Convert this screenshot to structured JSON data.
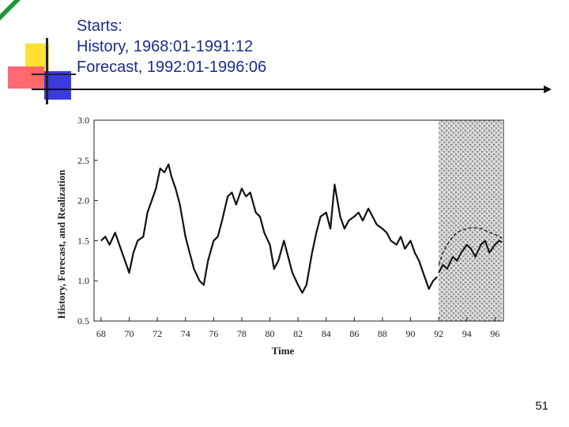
{
  "slide": {
    "title_lines": [
      "Starts:",
      "History, 1968:01-1991:12",
      "Forecast, 1992:01-1996:06"
    ],
    "page_number": "51",
    "colors": {
      "title": "#1a2e8a",
      "accent_yellow": "#ffe135",
      "accent_red": "#ff4b5a",
      "accent_blue": "#3a3adf",
      "accent_green": "#1f9a3a"
    }
  },
  "chart_data": {
    "type": "line",
    "title": "",
    "xlabel": "Time",
    "ylabel": "History, Forecast, and Realization",
    "xlim": [
      1967.5,
      1996.6
    ],
    "ylim": [
      0.5,
      3.0
    ],
    "x_ticks": [
      1968,
      1970,
      1972,
      1974,
      1976,
      1978,
      1980,
      1982,
      1984,
      1986,
      1988,
      1990,
      1992,
      1994,
      1996
    ],
    "x_tick_labels": [
      "68",
      "70",
      "72",
      "74",
      "76",
      "78",
      "80",
      "82",
      "84",
      "86",
      "88",
      "90",
      "92",
      "94",
      "96"
    ],
    "y_ticks": [
      0.5,
      1.0,
      1.5,
      2.0,
      2.5,
      3.0
    ],
    "y_tick_labels": [
      "0.5",
      "1.0",
      "1.5",
      "2.0",
      "2.5",
      "3.0"
    ],
    "forecast_region": [
      1992.0,
      1996.5
    ],
    "series": [
      {
        "name": "History",
        "x": [
          1968.0,
          1968.3,
          1968.6,
          1969.0,
          1969.3,
          1969.6,
          1970.0,
          1970.3,
          1970.6,
          1971.0,
          1971.3,
          1971.6,
          1971.9,
          1972.2,
          1972.5,
          1972.8,
          1973.0,
          1973.3,
          1973.6,
          1974.0,
          1974.3,
          1974.6,
          1975.0,
          1975.3,
          1975.6,
          1976.0,
          1976.3,
          1976.6,
          1977.0,
          1977.3,
          1977.6,
          1978.0,
          1978.3,
          1978.6,
          1979.0,
          1979.3,
          1979.6,
          1980.0,
          1980.3,
          1980.6,
          1981.0,
          1981.3,
          1981.6,
          1982.0,
          1982.3,
          1982.6,
          1983.0,
          1983.3,
          1983.6,
          1984.0,
          1984.3,
          1984.6,
          1985.0,
          1985.3,
          1985.6,
          1986.0,
          1986.3,
          1986.6,
          1987.0,
          1987.3,
          1987.6,
          1988.0,
          1988.3,
          1988.6,
          1989.0,
          1989.3,
          1989.6,
          1990.0,
          1990.3,
          1990.6,
          1991.0,
          1991.3,
          1991.6,
          1991.9
        ],
        "values": [
          1.5,
          1.55,
          1.45,
          1.6,
          1.45,
          1.3,
          1.1,
          1.35,
          1.5,
          1.55,
          1.85,
          2.0,
          2.15,
          2.4,
          2.35,
          2.45,
          2.3,
          2.15,
          1.95,
          1.55,
          1.35,
          1.15,
          1.0,
          0.95,
          1.25,
          1.5,
          1.55,
          1.75,
          2.05,
          2.1,
          1.95,
          2.15,
          2.05,
          2.1,
          1.85,
          1.8,
          1.6,
          1.45,
          1.15,
          1.25,
          1.5,
          1.3,
          1.1,
          0.95,
          0.85,
          0.95,
          1.35,
          1.6,
          1.8,
          1.85,
          1.65,
          2.2,
          1.8,
          1.65,
          1.75,
          1.8,
          1.85,
          1.75,
          1.9,
          1.8,
          1.7,
          1.65,
          1.6,
          1.5,
          1.45,
          1.55,
          1.4,
          1.5,
          1.35,
          1.25,
          1.05,
          0.9,
          1.0,
          1.05
        ]
      },
      {
        "name": "Realization",
        "x": [
          1992.0,
          1992.3,
          1992.6,
          1993.0,
          1993.3,
          1993.6,
          1994.0,
          1994.3,
          1994.6,
          1995.0,
          1995.3,
          1995.6,
          1996.0,
          1996.3,
          1996.5
        ],
        "values": [
          1.1,
          1.2,
          1.15,
          1.3,
          1.25,
          1.35,
          1.45,
          1.4,
          1.3,
          1.45,
          1.5,
          1.35,
          1.45,
          1.5,
          1.48
        ]
      },
      {
        "name": "Forecast",
        "x": [
          1992.0,
          1992.3,
          1992.6,
          1993.0,
          1993.3,
          1993.6,
          1994.0,
          1994.3,
          1994.6,
          1995.0,
          1995.3,
          1995.6,
          1996.0,
          1996.3,
          1996.5
        ],
        "values": [
          1.2,
          1.35,
          1.45,
          1.55,
          1.6,
          1.63,
          1.65,
          1.66,
          1.66,
          1.65,
          1.63,
          1.6,
          1.58,
          1.55,
          1.53
        ]
      }
    ]
  }
}
